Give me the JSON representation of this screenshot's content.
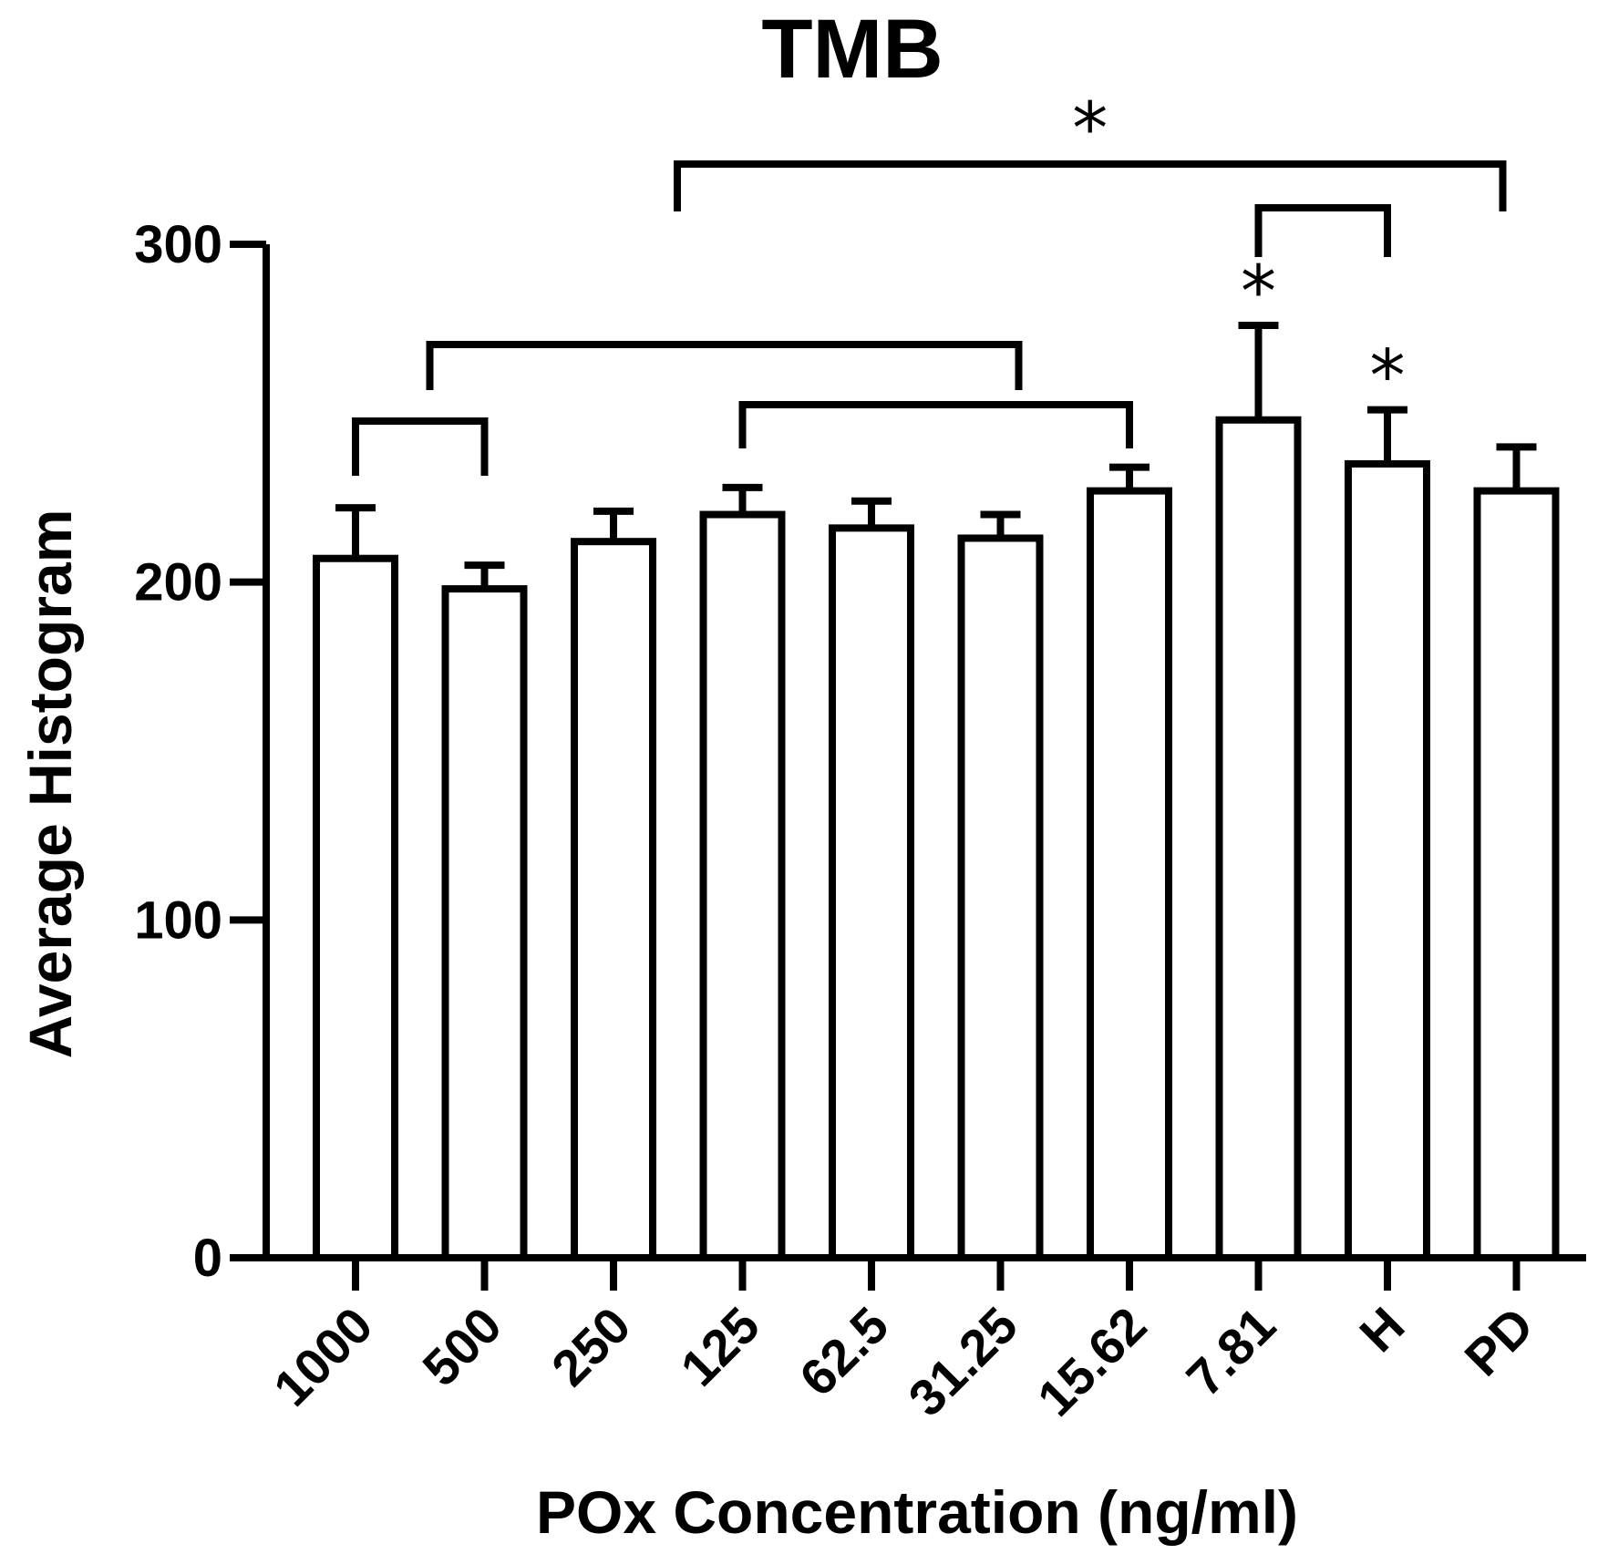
{
  "chart_data": {
    "type": "bar",
    "title": "TMB",
    "xlabel": "POx Concentration (ng/ml)",
    "ylabel": "Average Histogram",
    "ylim": [
      0,
      300
    ],
    "yticks": [
      "0",
      "100",
      "200",
      "300"
    ],
    "categories": [
      "1000",
      "500",
      "250",
      "125",
      "62.5",
      "31.25",
      "15.62",
      "7.81",
      "H",
      "PD"
    ],
    "values": [
      207,
      198,
      212,
      220,
      216,
      213,
      227,
      248,
      235,
      227
    ],
    "errors": [
      15,
      7,
      9,
      8,
      8,
      7,
      7,
      28,
      16,
      13
    ],
    "grid": false,
    "legend": "none",
    "significance": {
      "bar_stars": [
        {
          "category": "7.81",
          "label": "*"
        },
        {
          "category": "H",
          "label": "*"
        }
      ],
      "brackets": [
        {
          "from": "1000",
          "to": "500",
          "label": ""
        },
        {
          "from": "500",
          "to": "31.25",
          "label": ""
        },
        {
          "from": "125",
          "to": "15.62",
          "label": ""
        },
        {
          "from": "7.81",
          "to": "H",
          "label": ""
        },
        {
          "from": "250",
          "to": "PD",
          "label": "*"
        }
      ]
    }
  }
}
